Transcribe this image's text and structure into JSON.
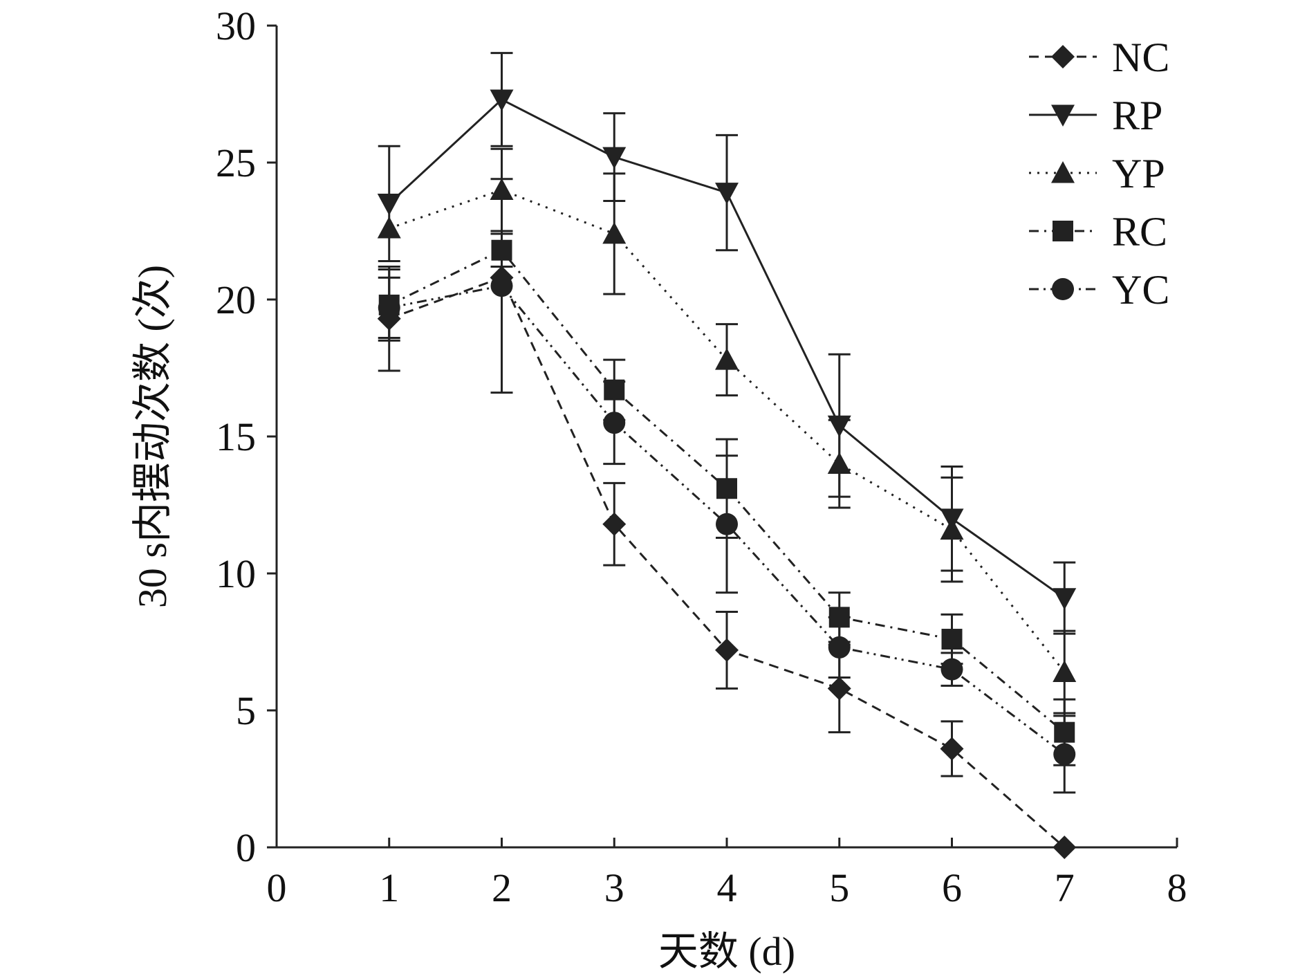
{
  "chart_data": {
    "type": "line",
    "xlabel": "天数 (d)",
    "ylabel": "30 s内摆动次数 (次)",
    "xlim": [
      0,
      8
    ],
    "ylim": [
      0,
      30
    ],
    "x_ticks": [
      "0",
      "1",
      "2",
      "3",
      "4",
      "5",
      "6",
      "7",
      "8"
    ],
    "y_ticks": [
      "0",
      "5",
      "10",
      "15",
      "20",
      "25",
      "30"
    ],
    "grid": false,
    "legend_position": "top-right",
    "error_bars": true,
    "x": [
      1,
      2,
      3,
      4,
      5,
      6,
      7
    ],
    "series": [
      {
        "name": "NC",
        "marker": "diamond",
        "line": "dashed",
        "values": [
          19.3,
          20.8,
          11.8,
          7.2,
          5.8,
          3.6,
          0.0
        ],
        "errors": [
          1.9,
          0.0,
          1.5,
          1.4,
          1.6,
          1.0,
          0.0
        ]
      },
      {
        "name": "RP",
        "marker": "triangle-down",
        "line": "solid",
        "values": [
          23.5,
          27.3,
          25.2,
          23.9,
          15.4,
          12.0,
          9.1
        ],
        "errors": [
          2.1,
          1.7,
          1.6,
          2.1,
          2.6,
          1.9,
          1.3
        ]
      },
      {
        "name": "YP",
        "marker": "triangle-up",
        "line": "dotted",
        "values": [
          22.6,
          24.0,
          22.4,
          17.8,
          14.0,
          11.6,
          6.4
        ],
        "errors": [
          0.0,
          1.5,
          2.2,
          1.3,
          1.6,
          1.9,
          1.5
        ]
      },
      {
        "name": "RC",
        "marker": "square",
        "line": "dash-dot",
        "values": [
          19.8,
          21.8,
          16.7,
          13.1,
          8.4,
          7.6,
          4.2
        ],
        "errors": [
          1.3,
          0.6,
          1.1,
          1.8,
          0.9,
          0.9,
          1.2
        ]
      },
      {
        "name": "YC",
        "marker": "circle",
        "line": "dash-dot-dot",
        "values": [
          19.7,
          20.5,
          15.5,
          11.8,
          7.3,
          6.5,
          3.4
        ],
        "errors": [
          1.1,
          3.9,
          1.5,
          2.5,
          1.1,
          0.6,
          1.4
        ]
      }
    ]
  }
}
